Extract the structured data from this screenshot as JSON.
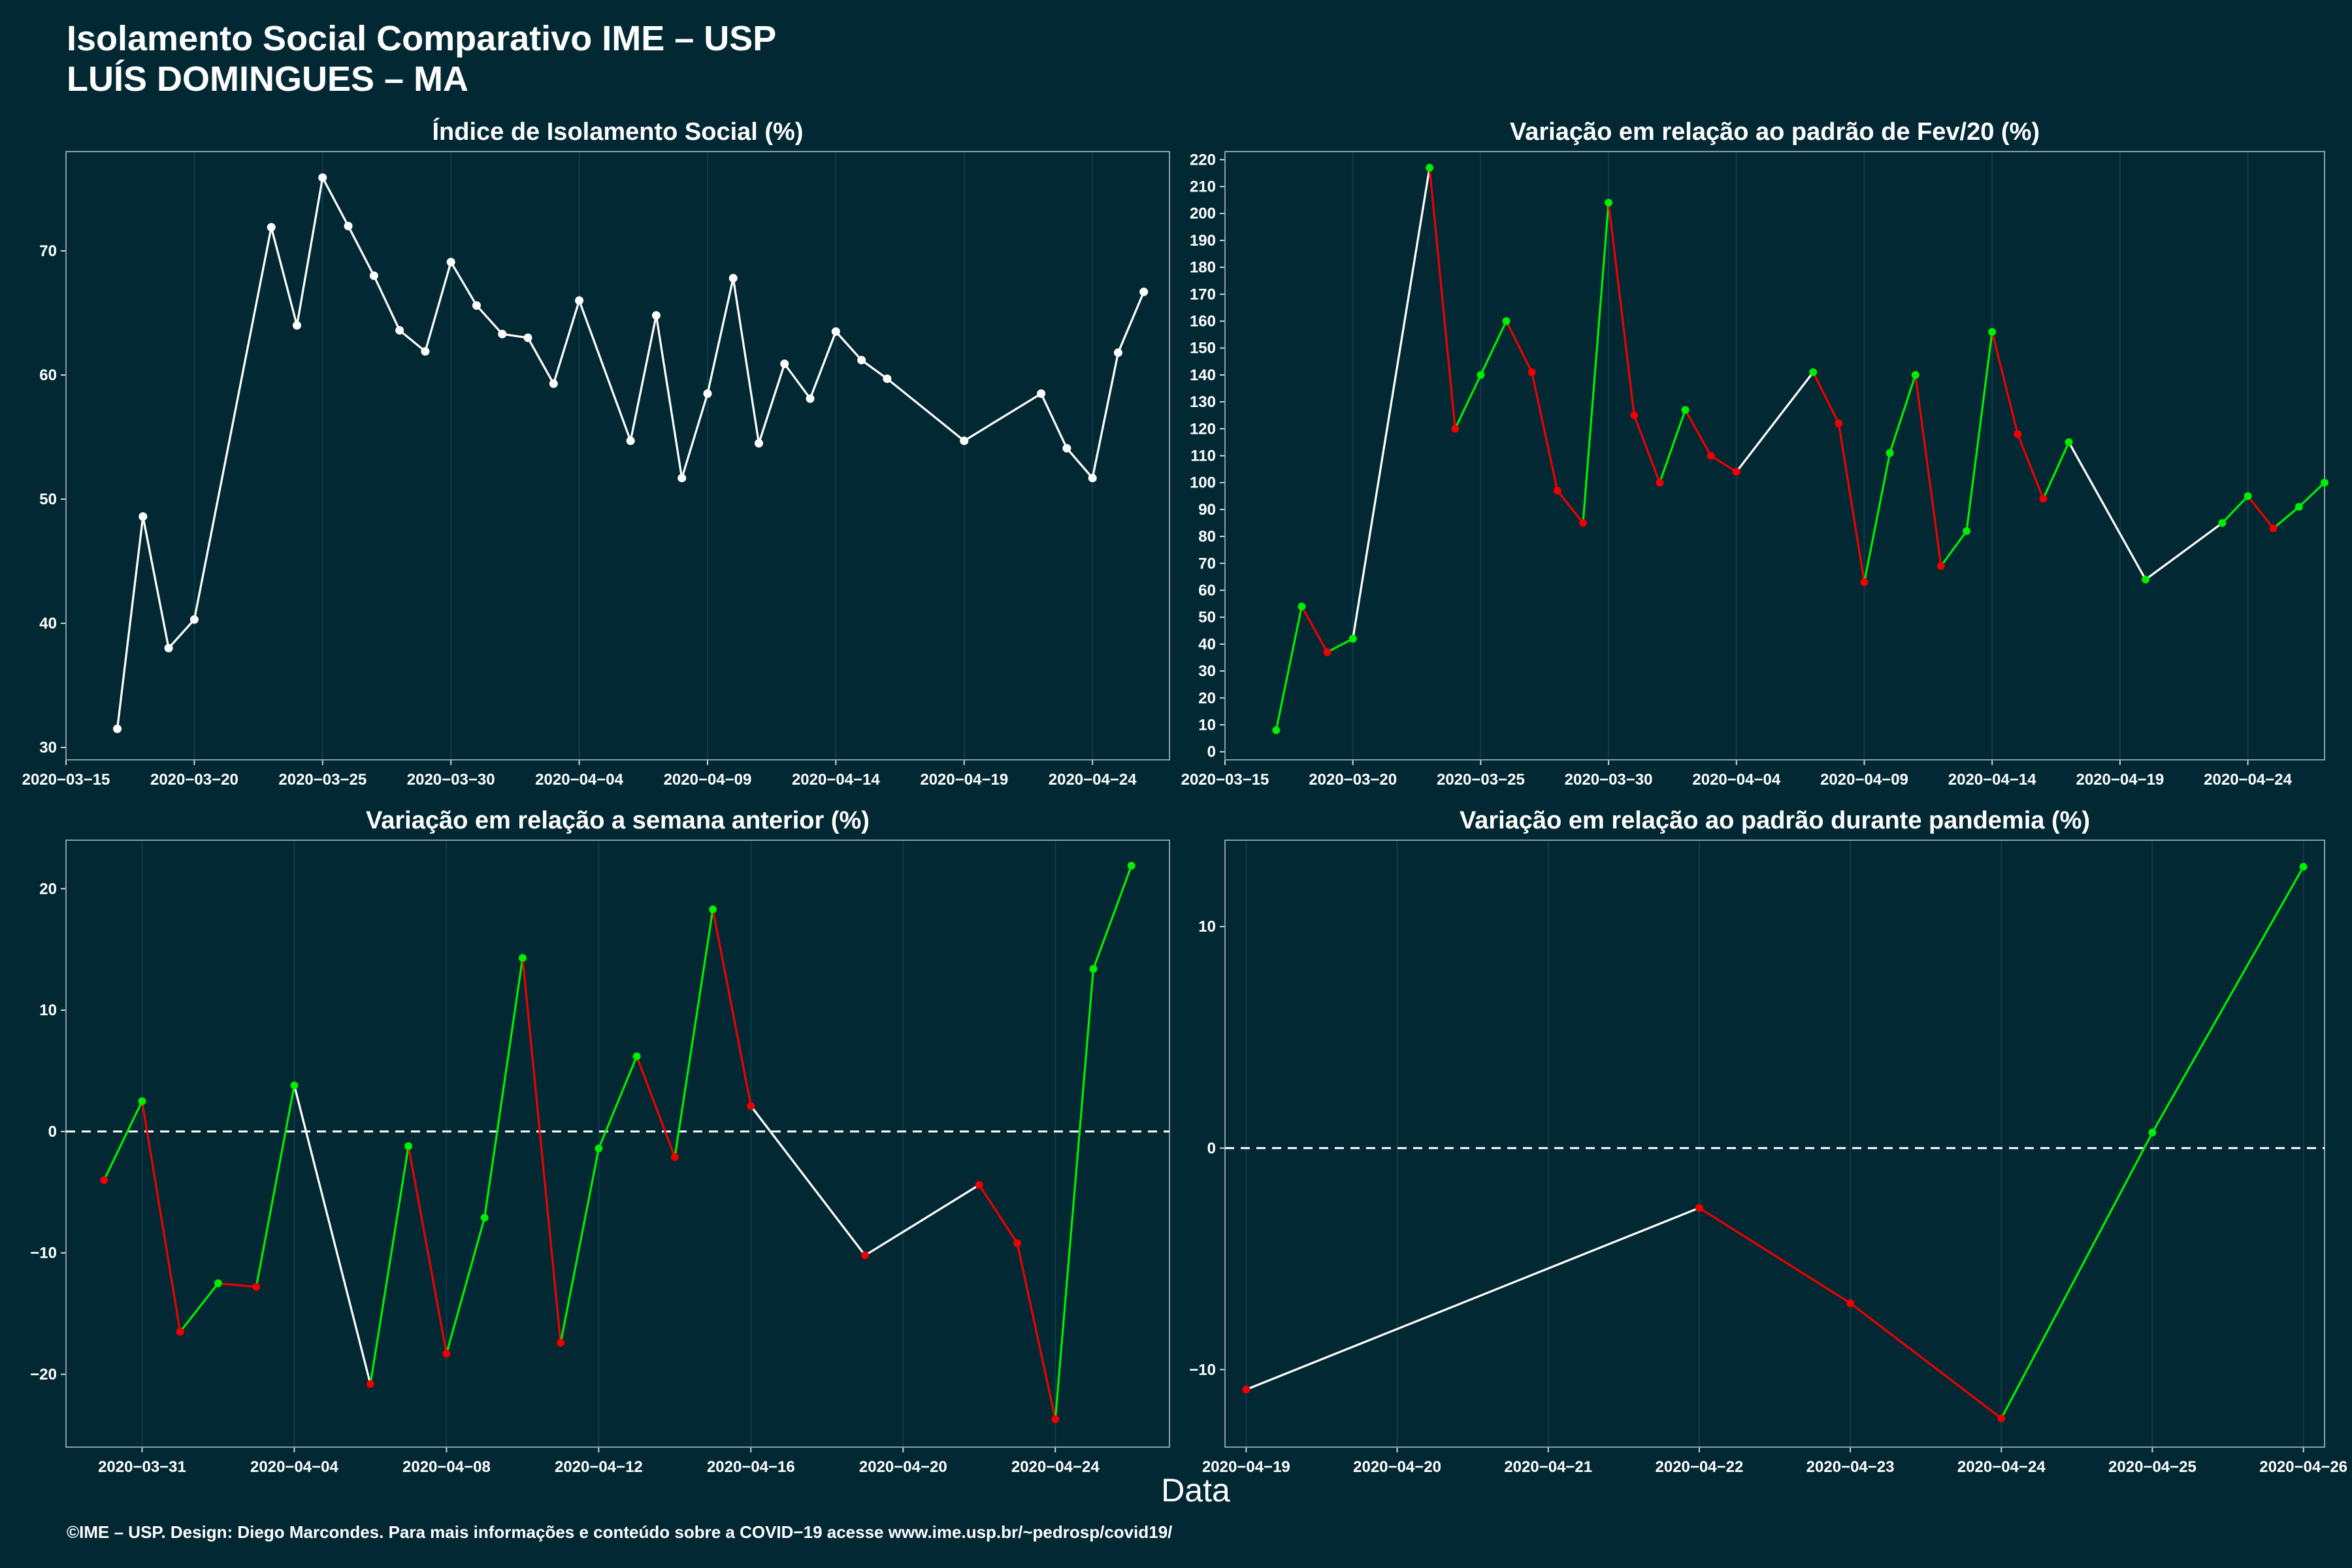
{
  "title_line1": "Isolamento Social Comparativo IME – USP",
  "title_line2": "LUÍS DOMINGUES – MA",
  "xlabel": "Data",
  "footer": "©IME – USP. Design: Diego Marcondes. Para mais informações e conteúdo sobre a COVID−19 acesse www.ime.usp.br/~pedrosp/covid19/",
  "colors": {
    "background": "#022833",
    "neutral_line": "#ffffff",
    "increase": "#00ee00",
    "decrease": "#ee0000",
    "grid": "#0f3d48"
  },
  "chart_data": [
    {
      "type": "line",
      "title": "Índice de Isolamento Social (%)",
      "x_type": "date",
      "xlim": [
        "2020-03-15",
        "2020-04-27"
      ],
      "ylim": [
        29,
        78
      ],
      "x_ticks": [
        "2020-03-15",
        "2020-03-20",
        "2020-03-25",
        "2020-03-30",
        "2020-04-04",
        "2020-04-09",
        "2020-04-14",
        "2020-04-19",
        "2020-04-24"
      ],
      "y_ticks": [
        30,
        40,
        50,
        60,
        70
      ],
      "y_tick_labels": [
        "30",
        "40",
        "50",
        "60",
        "70"
      ],
      "zero_line": false,
      "points": [
        [
          "2020-03-17",
          31.5
        ],
        [
          "2020-03-18",
          48.6
        ],
        [
          "2020-03-19",
          38.0
        ],
        [
          "2020-03-20",
          40.3
        ],
        [
          "2020-03-23",
          71.9
        ],
        [
          "2020-03-24",
          64.0
        ],
        [
          "2020-03-25",
          75.9
        ],
        [
          "2020-03-26",
          72.0
        ],
        [
          "2020-03-27",
          68.0
        ],
        [
          "2020-03-28",
          63.6
        ],
        [
          "2020-03-29",
          61.9
        ],
        [
          "2020-03-30",
          69.1
        ],
        [
          "2020-03-31",
          65.6
        ],
        [
          "2020-04-01",
          63.3
        ],
        [
          "2020-04-02",
          63.0
        ],
        [
          "2020-04-03",
          59.3
        ],
        [
          "2020-04-04",
          66.0
        ],
        [
          "2020-04-06",
          54.7
        ],
        [
          "2020-04-07",
          64.8
        ],
        [
          "2020-04-08",
          51.7
        ],
        [
          "2020-04-09",
          58.5
        ],
        [
          "2020-04-10",
          67.8
        ],
        [
          "2020-04-11",
          54.5
        ],
        [
          "2020-04-12",
          60.9
        ],
        [
          "2020-04-13",
          58.1
        ],
        [
          "2020-04-14",
          63.5
        ],
        [
          "2020-04-15",
          61.2
        ],
        [
          "2020-04-16",
          59.7
        ],
        [
          "2020-04-19",
          54.7
        ],
        [
          "2020-04-22",
          58.5
        ],
        [
          "2020-04-23",
          54.1
        ],
        [
          "2020-04-24",
          51.7
        ],
        [
          "2020-04-25",
          61.8
        ],
        [
          "2020-04-26",
          66.7
        ]
      ]
    },
    {
      "type": "line",
      "title": "Variação em relação ao padrão de Fev/20 (%)",
      "x_type": "date",
      "xlim": [
        "2020-03-15",
        "2020-04-27"
      ],
      "ylim": [
        -3,
        223
      ],
      "x_ticks": [
        "2020-03-15",
        "2020-03-20",
        "2020-03-25",
        "2020-03-30",
        "2020-04-04",
        "2020-04-09",
        "2020-04-14",
        "2020-04-19",
        "2020-04-24"
      ],
      "y_ticks": [
        0,
        10,
        20,
        30,
        40,
        50,
        60,
        70,
        80,
        90,
        100,
        110,
        120,
        130,
        140,
        150,
        160,
        170,
        180,
        190,
        200,
        210,
        220
      ],
      "y_tick_labels": [
        "0",
        "10",
        "20",
        "30",
        "40",
        "50",
        "60",
        "70",
        "80",
        "90",
        "100",
        "110",
        "120",
        "130",
        "140",
        "150",
        "160",
        "170",
        "180",
        "190",
        "200",
        "210",
        "220"
      ],
      "zero_line": false,
      "points": [
        [
          "2020-03-17",
          8
        ],
        [
          "2020-03-18",
          54
        ],
        [
          "2020-03-19",
          37
        ],
        [
          "2020-03-20",
          42
        ],
        [
          "2020-03-23",
          217
        ],
        [
          "2020-03-24",
          120
        ],
        [
          "2020-03-25",
          140
        ],
        [
          "2020-03-26",
          160
        ],
        [
          "2020-03-27",
          141
        ],
        [
          "2020-03-28",
          97
        ],
        [
          "2020-03-29",
          85
        ],
        [
          "2020-03-30",
          204
        ],
        [
          "2020-03-31",
          125
        ],
        [
          "2020-04-01",
          100
        ],
        [
          "2020-04-02",
          127
        ],
        [
          "2020-04-03",
          110
        ],
        [
          "2020-04-04",
          104
        ],
        [
          "2020-04-07",
          141
        ],
        [
          "2020-04-08",
          122
        ],
        [
          "2020-04-09",
          63
        ],
        [
          "2020-04-10",
          111
        ],
        [
          "2020-04-11",
          140
        ],
        [
          "2020-04-12",
          69
        ],
        [
          "2020-04-13",
          82
        ],
        [
          "2020-04-14",
          156
        ],
        [
          "2020-04-15",
          118
        ],
        [
          "2020-04-16",
          94
        ],
        [
          "2020-04-17",
          115
        ],
        [
          "2020-04-20",
          64
        ],
        [
          "2020-04-23",
          85
        ],
        [
          "2020-04-24",
          95
        ],
        [
          "2020-04-25",
          83
        ],
        [
          "2020-04-26",
          91
        ],
        [
          "2020-04-27",
          100
        ]
      ]
    },
    {
      "type": "line",
      "title": "Variação em relação a semana anterior (%)",
      "x_type": "date",
      "xlim": [
        "2020-03-29",
        "2020-04-27"
      ],
      "ylim": [
        -26,
        24
      ],
      "x_ticks": [
        "2020-03-31",
        "2020-04-04",
        "2020-04-08",
        "2020-04-12",
        "2020-04-16",
        "2020-04-20",
        "2020-04-24"
      ],
      "y_ticks": [
        -20,
        -10,
        0,
        10,
        20
      ],
      "y_tick_labels": [
        "−20",
        "−10",
        "0",
        "10",
        "20"
      ],
      "zero_line": true,
      "points": [
        [
          "2020-03-30",
          -4.0
        ],
        [
          "2020-03-31",
          2.5
        ],
        [
          "2020-04-01",
          -16.5
        ],
        [
          "2020-04-02",
          -12.5
        ],
        [
          "2020-04-03",
          -12.8
        ],
        [
          "2020-04-04",
          3.8
        ],
        [
          "2020-04-06",
          -20.8
        ],
        [
          "2020-04-07",
          -1.2
        ],
        [
          "2020-04-08",
          -18.3
        ],
        [
          "2020-04-09",
          -7.1
        ],
        [
          "2020-04-10",
          14.3
        ],
        [
          "2020-04-11",
          -17.4
        ],
        [
          "2020-04-12",
          -1.4
        ],
        [
          "2020-04-13",
          6.2
        ],
        [
          "2020-04-14",
          -2.1
        ],
        [
          "2020-04-15",
          18.3
        ],
        [
          "2020-04-16",
          2.1
        ],
        [
          "2020-04-19",
          -10.2
        ],
        [
          "2020-04-22",
          -4.4
        ],
        [
          "2020-04-23",
          -9.2
        ],
        [
          "2020-04-24",
          -23.7
        ],
        [
          "2020-04-25",
          13.4
        ],
        [
          "2020-04-26",
          21.9
        ]
      ]
    },
    {
      "type": "line",
      "title": "Variação em relação ao padrão durante pandemia (%)",
      "x_type": "date",
      "xlim": [
        "2020-04-18.86",
        "2020-04-26.14"
      ],
      "ylim": [
        -13.5,
        13.9
      ],
      "x_ticks": [
        "2020-04-19",
        "2020-04-20",
        "2020-04-21",
        "2020-04-22",
        "2020-04-23",
        "2020-04-24",
        "2020-04-25",
        "2020-04-26"
      ],
      "y_ticks": [
        -10,
        0,
        10
      ],
      "y_tick_labels": [
        "−10",
        "0",
        "10"
      ],
      "zero_line": true,
      "points": [
        [
          "2020-04-19",
          -10.9
        ],
        [
          "2020-04-22",
          -2.7
        ],
        [
          "2020-04-23",
          -7.0
        ],
        [
          "2020-04-24",
          -12.2
        ],
        [
          "2020-04-25",
          0.7
        ],
        [
          "2020-04-26",
          12.7
        ]
      ]
    }
  ]
}
